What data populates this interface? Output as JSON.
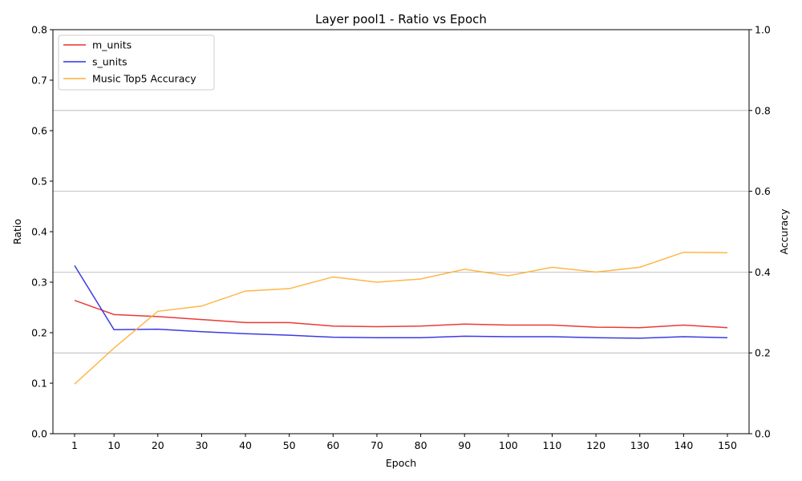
{
  "chart_data": {
    "type": "line",
    "title": "Layer pool1 - Ratio vs Epoch",
    "xlabel": "Epoch",
    "ylabel_left": "Ratio",
    "ylabel_right": "Accuracy",
    "x": [
      1,
      10,
      20,
      30,
      40,
      50,
      60,
      70,
      80,
      90,
      100,
      110,
      120,
      130,
      140,
      150
    ],
    "x_tick_labels": [
      "1",
      "10",
      "20",
      "30",
      "40",
      "50",
      "60",
      "70",
      "80",
      "90",
      "100",
      "110",
      "120",
      "130",
      "140",
      "150"
    ],
    "ylim_left": [
      0,
      0.8
    ],
    "yticks_left": [
      "0.0",
      "0.1",
      "0.2",
      "0.3",
      "0.4",
      "0.5",
      "0.6",
      "0.7",
      "0.8"
    ],
    "ylim_right": [
      0,
      1.0
    ],
    "yticks_right": [
      "0.0",
      "0.2",
      "0.4",
      "0.6",
      "0.8",
      "1.0"
    ],
    "grid": "horizontal lines at right-axis ticks",
    "legend_position": "top-left",
    "series": [
      {
        "name": "m_units",
        "axis": "left",
        "color": "#e8302a",
        "values": [
          0.264,
          0.236,
          0.232,
          0.226,
          0.22,
          0.22,
          0.213,
          0.212,
          0.213,
          0.217,
          0.215,
          0.215,
          0.211,
          0.21,
          0.215,
          0.21
        ]
      },
      {
        "name": "s_units",
        "axis": "left",
        "color": "#3030e0",
        "values": [
          0.333,
          0.206,
          0.207,
          0.202,
          0.198,
          0.195,
          0.191,
          0.19,
          0.19,
          0.193,
          0.192,
          0.192,
          0.19,
          0.189,
          0.192,
          0.19
        ]
      },
      {
        "name": "Music Top5 Accuracy",
        "axis": "right",
        "color": "#ffae33",
        "values": [
          0.123,
          0.212,
          0.303,
          0.316,
          0.353,
          0.359,
          0.388,
          0.375,
          0.383,
          0.407,
          0.391,
          0.412,
          0.4,
          0.412,
          0.449,
          0.448
        ]
      }
    ]
  }
}
